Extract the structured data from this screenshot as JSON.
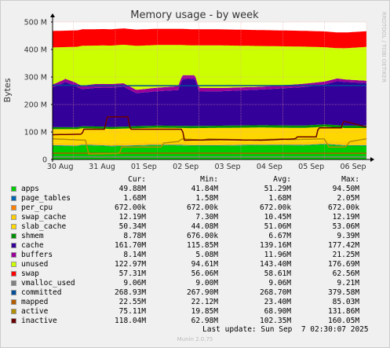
{
  "title": "Memory usage - by week",
  "ylabel": "Bytes",
  "watermark": "RRDTOOL / TOBI OETIKER",
  "last_update": "Last update: Sun Sep  7 02:30:07 2025",
  "footer": "Munin 2.0.75",
  "columns": [
    "Cur:",
    "Min:",
    "Avg:",
    "Max:"
  ],
  "legend": [
    {
      "name": "apps",
      "color": "#00cc00",
      "cur": "49.88M",
      "min": "41.84M",
      "avg": "51.29M",
      "max": "94.50M"
    },
    {
      "name": "page_tables",
      "color": "#0066b3",
      "cur": "1.68M",
      "min": "1.58M",
      "avg": "1.68M",
      "max": "2.05M"
    },
    {
      "name": "per_cpu",
      "color": "#ff8000",
      "cur": "672.00k",
      "min": "672.00k",
      "avg": "672.00k",
      "max": "672.00k"
    },
    {
      "name": "swap_cache",
      "color": "#ffcc00",
      "cur": "12.19M",
      "min": "7.30M",
      "avg": "10.45M",
      "max": "12.19M"
    },
    {
      "name": "slab_cache",
      "color": "#ffd700",
      "cur": "50.34M",
      "min": "44.08M",
      "avg": "51.06M",
      "max": "53.06M"
    },
    {
      "name": "shmem",
      "color": "#008f00",
      "cur": "8.78M",
      "min": "676.00k",
      "avg": "6.67M",
      "max": "9.39M"
    },
    {
      "name": "cache",
      "color": "#330099",
      "cur": "161.70M",
      "min": "115.85M",
      "avg": "139.16M",
      "max": "177.42M"
    },
    {
      "name": "buffers",
      "color": "#990099",
      "cur": "8.14M",
      "min": "5.08M",
      "avg": "11.96M",
      "max": "21.25M"
    },
    {
      "name": "unused",
      "color": "#ccff00",
      "cur": "122.97M",
      "min": "94.61M",
      "avg": "143.40M",
      "max": "176.69M"
    },
    {
      "name": "swap",
      "color": "#ff0000",
      "cur": "57.31M",
      "min": "56.06M",
      "avg": "58.61M",
      "max": "62.56M"
    },
    {
      "name": "vmalloc_used",
      "color": "#808080",
      "cur": "9.06M",
      "min": "9.00M",
      "avg": "9.06M",
      "max": "9.21M"
    },
    {
      "name": "committed",
      "color": "#004d99",
      "cur": "268.93M",
      "min": "267.90M",
      "avg": "268.70M",
      "max": "379.58M"
    },
    {
      "name": "mapped",
      "color": "#b35a00",
      "cur": "22.55M",
      "min": "22.12M",
      "avg": "23.40M",
      "max": "85.03M"
    },
    {
      "name": "active",
      "color": "#b38f00",
      "cur": "75.11M",
      "min": "19.85M",
      "avg": "68.90M",
      "max": "131.86M"
    },
    {
      "name": "inactive",
      "color": "#6b0000",
      "cur": "118.04M",
      "min": "62.98M",
      "avg": "102.35M",
      "max": "160.05M"
    }
  ],
  "chart_data": {
    "type": "area",
    "title": "Memory usage - by week",
    "ylabel": "Bytes",
    "ylim": [
      0,
      500
    ],
    "y_unit": "M",
    "yticks": [
      "0",
      "100 M",
      "200 M",
      "300 M",
      "400 M",
      "500 M"
    ],
    "yticks_values": [
      0,
      100,
      200,
      300,
      400,
      500
    ],
    "x_range_days": [
      0,
      7.5
    ],
    "xticks": [
      "30 Aug",
      "31 Aug",
      "01 Sep",
      "02 Sep",
      "03 Sep",
      "04 Sep",
      "05 Sep",
      "06 Sep"
    ],
    "xticks_values": [
      0.5,
      1.5,
      2.5,
      3.5,
      4.5,
      5.5,
      6.5,
      7.5
    ],
    "grid": true,
    "stacked": [
      {
        "name": "apps",
        "color": "#00cc00",
        "x": [
          0,
          0.6,
          0.7,
          1.2,
          1.4,
          2.0,
          2.5,
          3.1,
          3.3,
          4.0,
          5.0,
          6.0,
          6.5,
          7.0,
          7.5
        ],
        "values": [
          50,
          49,
          52,
          50,
          48,
          50,
          52,
          51,
          50,
          50,
          52,
          51,
          55,
          50,
          50
        ]
      },
      {
        "name": "page_tables",
        "color": "#0066b3",
        "x": [
          0,
          7.5
        ],
        "values": [
          1.7,
          1.7
        ]
      },
      {
        "name": "per_cpu",
        "color": "#ff8000",
        "x": [
          0,
          7.5
        ],
        "values": [
          0.7,
          0.7
        ]
      },
      {
        "name": "swap_cache",
        "color": "#ffcc00",
        "x": [
          0,
          3.0,
          7.5
        ],
        "values": [
          8,
          10,
          12
        ]
      },
      {
        "name": "slab_cache",
        "color": "#ffd700",
        "x": [
          0,
          1.0,
          2.0,
          3.0,
          4.0,
          5.0,
          6.0,
          7.5
        ],
        "values": [
          50,
          51,
          52,
          51,
          52,
          51,
          50,
          50
        ]
      },
      {
        "name": "shmem",
        "color": "#008f00",
        "x": [
          0,
          7.5
        ],
        "values": [
          7,
          9
        ]
      },
      {
        "name": "cache",
        "color": "#330099",
        "x": [
          0,
          0.25,
          0.3,
          0.55,
          0.7,
          1.0,
          1.7,
          2.0,
          2.5,
          3.0,
          3.1,
          3.4,
          3.5,
          4.0,
          5.0,
          6.0,
          6.5,
          6.8,
          7.5
        ],
        "values": [
          145,
          160,
          165,
          150,
          135,
          140,
          145,
          120,
          125,
          130,
          170,
          172,
          125,
          125,
          130,
          140,
          145,
          160,
          155
        ]
      },
      {
        "name": "buffers",
        "color": "#990099",
        "x": [
          0,
          1.0,
          2.0,
          3.0,
          4.0,
          5.0,
          6.0,
          7.5
        ],
        "values": [
          10,
          14,
          12,
          14,
          12,
          10,
          12,
          8
        ]
      },
      {
        "name": "unused",
        "color": "#ccff00",
        "x": [
          0,
          0.25,
          0.3,
          0.55,
          0.7,
          1.0,
          1.7,
          2.0,
          2.5,
          3.0,
          3.1,
          3.4,
          3.5,
          4.0,
          5.0,
          6.0,
          6.5,
          6.8,
          7.5
        ],
        "values": [
          135,
          120,
          115,
          130,
          145,
          140,
          140,
          160,
          155,
          150,
          110,
          108,
          155,
          155,
          148,
          135,
          125,
          110,
          123
        ]
      },
      {
        "name": "swap",
        "color": "#ff0000",
        "x": [
          0,
          7.5
        ],
        "values": [
          60,
          57
        ]
      }
    ],
    "lines": [
      {
        "name": "vmalloc_used",
        "color": "#808080",
        "x": [
          0,
          7.5
        ],
        "values": [
          9,
          9
        ]
      },
      {
        "name": "committed",
        "color": "#004d99",
        "x": [
          0,
          0.5,
          0.6,
          7.5
        ],
        "values": [
          270,
          270,
          268,
          269
        ]
      },
      {
        "name": "mapped",
        "color": "#b35a00",
        "x": [
          0,
          7.5
        ],
        "values": [
          23,
          22.5
        ]
      },
      {
        "name": "active",
        "color": "#b38f00",
        "x": [
          0,
          0.8,
          0.85,
          1.6,
          1.65,
          2.6,
          2.65,
          3.0,
          3.1,
          3.6,
          3.7,
          4.5,
          4.6,
          5.5,
          5.6,
          6.5,
          6.6,
          7.0,
          7.1,
          7.5
        ],
        "values": [
          75,
          70,
          20,
          22,
          45,
          45,
          60,
          65,
          75,
          70,
          75,
          72,
          70,
          75,
          72,
          75,
          45,
          45,
          65,
          75
        ]
      },
      {
        "name": "inactive",
        "color": "#6b0000",
        "x": [
          0,
          0.7,
          0.75,
          1.25,
          1.3,
          1.8,
          1.85,
          3.1,
          3.15,
          4.0,
          5.0,
          5.8,
          5.85,
          6.3,
          6.35,
          6.9,
          6.95,
          7.5
        ],
        "values": [
          90,
          92,
          110,
          110,
          155,
          155,
          110,
          110,
          70,
          72,
          70,
          75,
          82,
          82,
          115,
          115,
          140,
          118
        ]
      }
    ]
  }
}
